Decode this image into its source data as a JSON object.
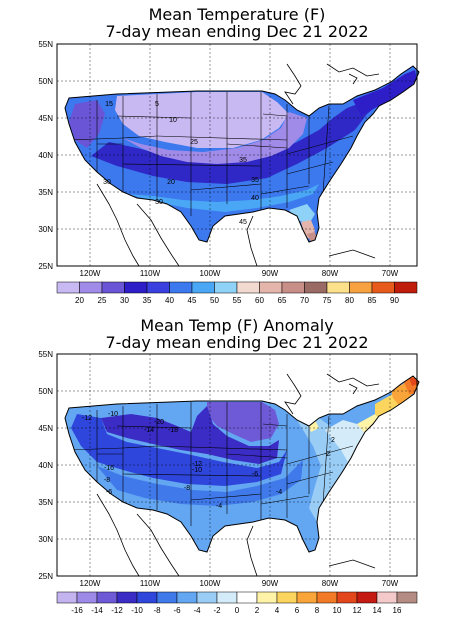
{
  "map1": {
    "title_line1": "Mean Temperature (F)",
    "title_line2": "7-day mean ending Dec 21 2022",
    "lat_labels": [
      "55N",
      "50N",
      "45N",
      "40N",
      "35N",
      "30N",
      "25N"
    ],
    "lon_labels": [
      "120W",
      "110W",
      "100W",
      "90W",
      "80W",
      "70W"
    ],
    "contour_labels": [
      "15",
      "5",
      "10",
      "25",
      "35",
      "20",
      "30",
      "35",
      "40",
      "30",
      "45"
    ],
    "legend": {
      "labels": [
        "20",
        "25",
        "30",
        "35",
        "40",
        "45",
        "50",
        "55",
        "60",
        "65",
        "70",
        "75",
        "80",
        "85",
        "90"
      ],
      "colors": [
        "#c8b9f2",
        "#a08be8",
        "#6a55d6",
        "#2d1ec8",
        "#3a3fe0",
        "#3c78ee",
        "#4aa7f5",
        "#8fd2f7",
        "#f3dad0",
        "#e4b5ab",
        "#c88e88",
        "#9a6a64",
        "#fde08a",
        "#f8a140",
        "#e85a1c",
        "#c01c0c"
      ]
    }
  },
  "map2": {
    "title_line1": "Mean Temp (F) Anomaly",
    "title_line2": "7-day mean ending Dec 21 2022",
    "lat_labels": [
      "55N",
      "50N",
      "45N",
      "40N",
      "35N",
      "30N",
      "25N"
    ],
    "lon_labels": [
      "120W",
      "110W",
      "100W",
      "90W",
      "80W",
      "70W"
    ],
    "contour_labels": [
      "-12",
      "-10",
      "-20",
      "-14",
      "-18",
      "-12",
      "-10",
      "-16",
      "-8",
      "-6",
      "-8",
      "-6",
      "-4",
      "-4",
      "-2",
      "2"
    ],
    "legend": {
      "labels": [
        "-16",
        "-14",
        "-12",
        "-10",
        "-8",
        "-6",
        "-4",
        "-2",
        "0",
        "2",
        "4",
        "6",
        "8",
        "10",
        "12",
        "14",
        "16"
      ],
      "colors": [
        "#c3b4ef",
        "#9d89e6",
        "#6e5ad7",
        "#3a2cc5",
        "#2f46dc",
        "#3f79ea",
        "#63a6f2",
        "#9acdf6",
        "#d4ebf9",
        "#ffffff",
        "#fff3a8",
        "#fbd55e",
        "#f9a53a",
        "#f27a27",
        "#e3461a",
        "#c41a12",
        "#f3c9c9",
        "#b48c84"
      ]
    }
  }
}
